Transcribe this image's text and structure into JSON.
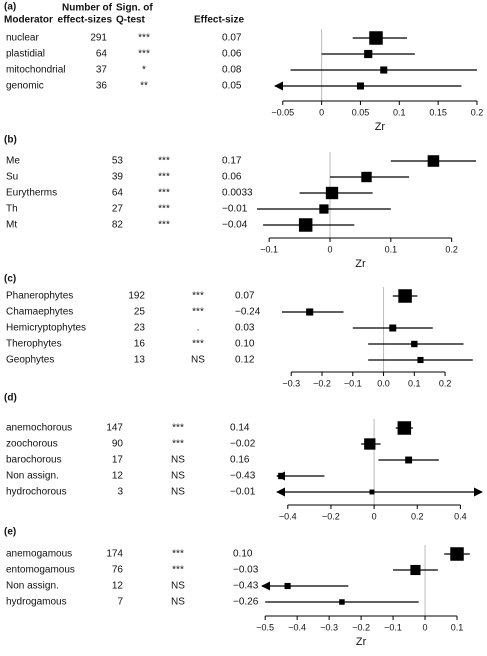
{
  "chart_data": [
    {
      "type": "forest",
      "panel_label": "(a)",
      "header_moderator": "Moderator",
      "header_n": [
        "Number of",
        "effect-sizes"
      ],
      "header_q": [
        "Sign. of",
        "Q-test"
      ],
      "header_effect": "Effect-size",
      "categories": [
        "nuclear",
        "plastidial",
        "mitochondrial",
        "genomic"
      ],
      "counts": [
        "291",
        "64",
        "37",
        "36"
      ],
      "q_test": [
        "***",
        "***",
        "*",
        "**"
      ],
      "values": [
        0.07,
        0.06,
        0.08,
        0.05
      ],
      "value_labels": [
        "0.07",
        "0.06",
        "0.08",
        "0.05"
      ],
      "ci_low": [
        0.04,
        0,
        -0.04,
        -0.07
      ],
      "ci_high": [
        0.11,
        0.12,
        0.2,
        0.18
      ],
      "ref_line": 0,
      "xlim": [
        -0.06,
        0.2
      ],
      "xticks": [
        {
          "value": -0.05,
          "label": "−0.05"
        },
        0,
        0.05,
        0.1,
        0.15,
        0.2
      ],
      "xlabel": "Zr"
    },
    {
      "type": "forest",
      "panel_label": "(b)",
      "categories": [
        "Me",
        "Su",
        "Eurytherms",
        "Th",
        "Mt"
      ],
      "counts": [
        "53",
        "39",
        "64",
        "27",
        "82"
      ],
      "q_test": [
        "***",
        "***",
        "***",
        "***",
        "***"
      ],
      "values": [
        0.17,
        0.06,
        0.0033,
        -0.01,
        -0.04
      ],
      "value_labels": [
        "0.17",
        "0.06",
        "0.0033",
        "−0.01",
        "−0.04"
      ],
      "ci_low": [
        0.1,
        0,
        -0.05,
        -0.12,
        -0.11
      ],
      "ci_high": [
        0.24,
        0.13,
        0.07,
        0.1,
        0.04
      ],
      "ref_line": 0,
      "xlim": [
        -0.12,
        0.24
      ],
      "xticks": [
        {
          "value": -0.1,
          "label": "−0.1"
        },
        0,
        0.1,
        0.2
      ],
      "xlabel": "Zr"
    },
    {
      "type": "forest",
      "panel_label": "(c)",
      "categories": [
        "Phanerophytes",
        "Chamaephytes",
        "Hemicryptophytes",
        "Therophytes",
        "Geophytes"
      ],
      "counts": [
        "192",
        "25",
        "23",
        "16",
        "13"
      ],
      "q_test": [
        "***",
        "***",
        ".",
        "***",
        "NS"
      ],
      "values": [
        0.07,
        -0.24,
        0.03,
        0.1,
        0.12
      ],
      "value_labels": [
        "0.07",
        "−0.24",
        "0.03",
        "0.10",
        "0.12"
      ],
      "ci_low": [
        0.03,
        -0.33,
        -0.1,
        -0.05,
        -0.05
      ],
      "ci_high": [
        0.11,
        -0.13,
        0.16,
        0.26,
        0.29
      ],
      "ref_line": 0,
      "xlim": [
        -0.33,
        0.32
      ],
      "xticks": [
        {
          "value": -0.3,
          "label": "−0.3"
        },
        {
          "value": -0.2,
          "label": "−0.2"
        },
        {
          "value": -0.1,
          "label": "−0.1"
        },
        {
          "value": 0,
          "label": "0.0"
        },
        0.1,
        0.2
      ]
    },
    {
      "type": "forest",
      "panel_label": "(d)",
      "categories": [
        "anemochorous",
        "zoochorous",
        "barochorous",
        "Non assign.",
        "hydrochorous"
      ],
      "counts": [
        "147",
        "90",
        "17",
        "12",
        "3"
      ],
      "q_test": [
        "***",
        "***",
        "NS",
        "NS",
        "NS"
      ],
      "values": [
        0.14,
        -0.02,
        0.16,
        -0.43,
        -0.01
      ],
      "value_labels": [
        "0.14",
        "−0.02",
        "0.16",
        "−0.43",
        "−0.01"
      ],
      "ci_low": [
        0.1,
        -0.06,
        0.02,
        -0.6,
        -0.6
      ],
      "ci_high": [
        0.18,
        0.03,
        0.3,
        -0.23,
        0.6
      ],
      "ref_line": 0,
      "xlim": [
        -0.45,
        0.5
      ],
      "xticks": [
        {
          "value": -0.4,
          "label": "−0.4"
        },
        {
          "value": -0.2,
          "label": "−0.2"
        },
        0,
        0.2,
        0.4
      ]
    },
    {
      "type": "forest",
      "panel_label": "(e)",
      "categories": [
        "anemogamous",
        "entomogamous",
        "Non assign.",
        "hydrogamous"
      ],
      "counts": [
        "174",
        "76",
        "12",
        "7"
      ],
      "q_test": [
        "***",
        "***",
        "NS",
        "NS"
      ],
      "values": [
        0.1,
        -0.03,
        -0.43,
        -0.26
      ],
      "value_labels": [
        "0.10",
        "−0.03",
        "−0.43",
        "−0.26"
      ],
      "ci_low": [
        0.06,
        -0.1,
        -0.6,
        -0.5
      ],
      "ci_high": [
        0.14,
        0.04,
        -0.24,
        -0.02
      ],
      "ref_line": 0,
      "xlim": [
        -0.51,
        0.15
      ],
      "xticks": [
        {
          "value": -0.5,
          "label": "−0.5"
        },
        {
          "value": -0.4,
          "label": "−0.4"
        },
        {
          "value": -0.3,
          "label": "−0.3"
        },
        {
          "value": -0.2,
          "label": "−0.2"
        },
        {
          "value": -0.1,
          "label": "−0.1"
        },
        0,
        0.1
      ],
      "xlabel": "Zr"
    }
  ]
}
